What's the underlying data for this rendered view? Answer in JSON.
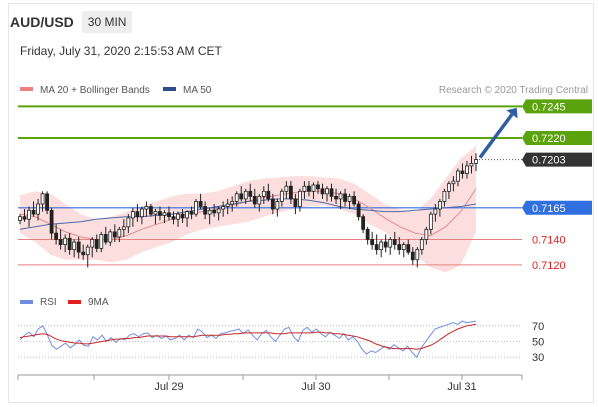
{
  "header": {
    "symbol": "AUD/USD",
    "timeframe": "30 MIN",
    "date": "Friday, July 31, 2020 2:15:53 AM CET"
  },
  "legend": {
    "bollinger": {
      "label": "MA 20 + Bollinger Bands",
      "color": "#f08080"
    },
    "ma50": {
      "label": "MA 50",
      "color": "#2c4f8c"
    },
    "credit": "Research © 2020 Trading Central"
  },
  "rsi_legend": {
    "rsi": {
      "label": "RSI",
      "color": "#6f8ee0"
    },
    "ma9": {
      "label": "9MA",
      "color": "#e02020"
    }
  },
  "colors": {
    "green": "#5aa30c",
    "blue": "#2f6fe0",
    "red": "#e88080",
    "dark": "#333333",
    "arrow": "#2f5ea0"
  },
  "chart_data": [
    {
      "type": "candlestick",
      "title": "AUD/USD 30 MIN",
      "ylim": [
        0.7112,
        0.725
      ],
      "x_ticks": [
        "Jul 29",
        "Jul 30",
        "Jul 31"
      ],
      "ohlc": [
        [
          0.7155,
          0.716,
          0.7152,
          0.7158
        ],
        [
          0.7158,
          0.7164,
          0.7154,
          0.7156
        ],
        [
          0.7156,
          0.7166,
          0.715,
          0.7163
        ],
        [
          0.7163,
          0.717,
          0.7158,
          0.716
        ],
        [
          0.716,
          0.7172,
          0.7155,
          0.7168
        ],
        [
          0.7168,
          0.7178,
          0.7162,
          0.7176
        ],
        [
          0.7176,
          0.7178,
          0.716,
          0.7163
        ],
        [
          0.7163,
          0.7165,
          0.714,
          0.7145
        ],
        [
          0.7145,
          0.7152,
          0.7136,
          0.714
        ],
        [
          0.714,
          0.7148,
          0.7132,
          0.7136
        ],
        [
          0.7136,
          0.7144,
          0.713,
          0.7141
        ],
        [
          0.7141,
          0.7145,
          0.7128,
          0.7132
        ],
        [
          0.7132,
          0.714,
          0.7126,
          0.7138
        ],
        [
          0.7138,
          0.7142,
          0.7125,
          0.713
        ],
        [
          0.713,
          0.7136,
          0.7124,
          0.7128
        ],
        [
          0.7128,
          0.7136,
          0.7118,
          0.7134
        ],
        [
          0.7134,
          0.7142,
          0.7126,
          0.714
        ],
        [
          0.714,
          0.7144,
          0.713,
          0.7133
        ],
        [
          0.7133,
          0.7146,
          0.713,
          0.7144
        ],
        [
          0.7144,
          0.715,
          0.7136,
          0.7138
        ],
        [
          0.7138,
          0.7148,
          0.7135,
          0.7146
        ],
        [
          0.7146,
          0.7152,
          0.7138,
          0.7142
        ],
        [
          0.7142,
          0.715,
          0.7138,
          0.7148
        ],
        [
          0.7148,
          0.7156,
          0.7142,
          0.715
        ],
        [
          0.715,
          0.716,
          0.7145,
          0.7157
        ],
        [
          0.7157,
          0.7165,
          0.715,
          0.7162
        ],
        [
          0.7162,
          0.7168,
          0.7154,
          0.7158
        ],
        [
          0.7158,
          0.7166,
          0.7152,
          0.7164
        ],
        [
          0.7164,
          0.717,
          0.7158,
          0.7166
        ],
        [
          0.7166,
          0.7168,
          0.7158,
          0.716
        ],
        [
          0.716,
          0.7164,
          0.7152,
          0.7162
        ],
        [
          0.7162,
          0.7166,
          0.7155,
          0.7159
        ],
        [
          0.7159,
          0.7163,
          0.7153,
          0.7161
        ],
        [
          0.7161,
          0.7166,
          0.7155,
          0.7158
        ],
        [
          0.7158,
          0.7162,
          0.7152,
          0.7156
        ],
        [
          0.7156,
          0.7162,
          0.715,
          0.716
        ],
        [
          0.716,
          0.7164,
          0.7153,
          0.7157
        ],
        [
          0.7157,
          0.7163,
          0.715,
          0.7162
        ],
        [
          0.7162,
          0.7166,
          0.7156,
          0.716
        ],
        [
          0.716,
          0.7172,
          0.7158,
          0.717
        ],
        [
          0.717,
          0.7176,
          0.7164,
          0.7166
        ],
        [
          0.7166,
          0.717,
          0.7156,
          0.716
        ],
        [
          0.716,
          0.7165,
          0.7152,
          0.7163
        ],
        [
          0.7163,
          0.7168,
          0.7158,
          0.7161
        ],
        [
          0.7161,
          0.7166,
          0.7155,
          0.7164
        ],
        [
          0.7164,
          0.717,
          0.7158,
          0.7166
        ],
        [
          0.7166,
          0.7172,
          0.716,
          0.7168
        ],
        [
          0.7168,
          0.7174,
          0.7162,
          0.717
        ],
        [
          0.717,
          0.7178,
          0.7166,
          0.7176
        ],
        [
          0.7176,
          0.7182,
          0.717,
          0.7172
        ],
        [
          0.7172,
          0.718,
          0.7168,
          0.7178
        ],
        [
          0.7178,
          0.7184,
          0.717,
          0.7174
        ],
        [
          0.7174,
          0.718,
          0.7165,
          0.7168
        ],
        [
          0.7168,
          0.7176,
          0.7162,
          0.7174
        ],
        [
          0.7174,
          0.7182,
          0.7168,
          0.7178
        ],
        [
          0.7178,
          0.7184,
          0.717,
          0.7172
        ],
        [
          0.7172,
          0.7176,
          0.716,
          0.7164
        ],
        [
          0.7164,
          0.7172,
          0.7158,
          0.717
        ],
        [
          0.717,
          0.718,
          0.7166,
          0.7178
        ],
        [
          0.7178,
          0.7186,
          0.7172,
          0.7182
        ],
        [
          0.7182,
          0.7186,
          0.7168,
          0.7172
        ],
        [
          0.7172,
          0.7176,
          0.716,
          0.7166
        ],
        [
          0.7166,
          0.718,
          0.7162,
          0.7178
        ],
        [
          0.7178,
          0.7186,
          0.7172,
          0.7182
        ],
        [
          0.7182,
          0.7186,
          0.7174,
          0.7178
        ],
        [
          0.7178,
          0.7185,
          0.7172,
          0.7183
        ],
        [
          0.7183,
          0.7186,
          0.7176,
          0.718
        ],
        [
          0.718,
          0.7184,
          0.7172,
          0.7176
        ],
        [
          0.7176,
          0.7182,
          0.717,
          0.718
        ],
        [
          0.718,
          0.7184,
          0.717,
          0.7174
        ],
        [
          0.7174,
          0.718,
          0.7168,
          0.7172
        ],
        [
          0.7172,
          0.7178,
          0.7164,
          0.7176
        ],
        [
          0.7176,
          0.718,
          0.7166,
          0.717
        ],
        [
          0.717,
          0.7176,
          0.7164,
          0.7174
        ],
        [
          0.7174,
          0.7178,
          0.7166,
          0.7168
        ],
        [
          0.7168,
          0.717,
          0.7155,
          0.7158
        ],
        [
          0.7158,
          0.716,
          0.7145,
          0.7148
        ],
        [
          0.7148,
          0.715,
          0.7136,
          0.714
        ],
        [
          0.714,
          0.7146,
          0.7132,
          0.7136
        ],
        [
          0.7136,
          0.7144,
          0.7128,
          0.7132
        ],
        [
          0.7132,
          0.714,
          0.7126,
          0.7138
        ],
        [
          0.7138,
          0.7144,
          0.713,
          0.7134
        ],
        [
          0.7134,
          0.7142,
          0.7128,
          0.714
        ],
        [
          0.714,
          0.7146,
          0.7132,
          0.7136
        ],
        [
          0.7136,
          0.7142,
          0.7128,
          0.7132
        ],
        [
          0.7132,
          0.7138,
          0.7126,
          0.7136
        ],
        [
          0.7136,
          0.714,
          0.7128,
          0.713
        ],
        [
          0.713,
          0.7134,
          0.712,
          0.7124
        ],
        [
          0.7124,
          0.7134,
          0.7118,
          0.7132
        ],
        [
          0.7132,
          0.7142,
          0.7128,
          0.714
        ],
        [
          0.714,
          0.715,
          0.7136,
          0.7148
        ],
        [
          0.7148,
          0.7162,
          0.7144,
          0.716
        ],
        [
          0.716,
          0.7168,
          0.7154,
          0.7164
        ],
        [
          0.7164,
          0.7172,
          0.7158,
          0.717
        ],
        [
          0.717,
          0.718,
          0.7166,
          0.7178
        ],
        [
          0.7178,
          0.7186,
          0.7172,
          0.7184
        ],
        [
          0.7184,
          0.719,
          0.7178,
          0.7186
        ],
        [
          0.7186,
          0.7196,
          0.7182,
          0.7194
        ],
        [
          0.7194,
          0.72,
          0.7188,
          0.7192
        ],
        [
          0.7192,
          0.7202,
          0.7188,
          0.7198
        ],
        [
          0.7198,
          0.7206,
          0.7192,
          0.72
        ],
        [
          0.72,
          0.7208,
          0.7194,
          0.7203
        ]
      ],
      "levels": [
        {
          "value": 0.7245,
          "label": "0.7245",
          "style": "green-fill"
        },
        {
          "value": 0.722,
          "label": "0.7220",
          "style": "green-fill"
        },
        {
          "value": 0.7203,
          "label": "0.7203",
          "style": "dark-fill"
        },
        {
          "value": 0.7165,
          "label": "0.7165",
          "style": "blue-fill"
        },
        {
          "value": 0.714,
          "label": "0.7140",
          "style": "red-text"
        },
        {
          "value": 0.712,
          "label": "0.7120",
          "style": "red-text"
        }
      ],
      "ma50": [
        0.7148,
        0.715,
        0.7152,
        0.7153,
        0.7154,
        0.7156,
        0.7157,
        0.7158,
        0.7158,
        0.7159,
        0.716,
        0.7162,
        0.7164,
        0.7166,
        0.7168,
        0.717,
        0.7171,
        0.7172,
        0.7172,
        0.7171,
        0.7169,
        0.7166,
        0.7164,
        0.7163,
        0.7162,
        0.7162,
        0.7163,
        0.7164,
        0.7165,
        0.7166,
        0.7168
      ],
      "ma20": [
        0.716,
        0.7158,
        0.7152,
        0.7146,
        0.7142,
        0.714,
        0.714,
        0.7143,
        0.7148,
        0.7152,
        0.7156,
        0.716,
        0.7162,
        0.7164,
        0.7167,
        0.717,
        0.7173,
        0.7175,
        0.7177,
        0.7178,
        0.7178,
        0.7176,
        0.7172,
        0.7165,
        0.7157,
        0.715,
        0.7145,
        0.7143,
        0.715,
        0.7162,
        0.718
      ],
      "bb_upper": [
        0.7175,
        0.7178,
        0.7176,
        0.7168,
        0.716,
        0.7156,
        0.7158,
        0.7162,
        0.7166,
        0.717,
        0.7174,
        0.7176,
        0.7176,
        0.7178,
        0.7182,
        0.7186,
        0.7188,
        0.7189,
        0.719,
        0.719,
        0.7189,
        0.7188,
        0.7184,
        0.7176,
        0.7168,
        0.7164,
        0.7162,
        0.7172,
        0.7188,
        0.7204,
        0.7214
      ],
      "bb_lower": [
        0.7145,
        0.7138,
        0.7128,
        0.7124,
        0.7124,
        0.7124,
        0.7122,
        0.7124,
        0.713,
        0.7134,
        0.7138,
        0.7144,
        0.7148,
        0.715,
        0.7152,
        0.7154,
        0.7158,
        0.7161,
        0.7164,
        0.7166,
        0.7167,
        0.7164,
        0.716,
        0.7152,
        0.7146,
        0.7136,
        0.7128,
        0.7118,
        0.7114,
        0.712,
        0.7146
      ]
    },
    {
      "type": "line",
      "title": "RSI",
      "ylim": [
        20,
        80
      ],
      "y_ticks": [
        70,
        50,
        30
      ],
      "series": [
        {
          "name": "RSI",
          "values": [
            52,
            58,
            62,
            56,
            66,
            70,
            58,
            45,
            40,
            44,
            48,
            42,
            46,
            52,
            45,
            44,
            56,
            52,
            58,
            50,
            55,
            49,
            54,
            52,
            58,
            60,
            56,
            60,
            61,
            55,
            58,
            54,
            57,
            52,
            54,
            58,
            52,
            58,
            55,
            66,
            62,
            55,
            58,
            54,
            60,
            61,
            63,
            64,
            66,
            60,
            65,
            58,
            52,
            60,
            64,
            56,
            50,
            58,
            66,
            68,
            56,
            50,
            64,
            68,
            62,
            66,
            60,
            56,
            62,
            58,
            54,
            60,
            52,
            56,
            50,
            40,
            34,
            38,
            36,
            40,
            44,
            40,
            46,
            42,
            38,
            44,
            36,
            30,
            42,
            50,
            58,
            66,
            68,
            70,
            72,
            74,
            72,
            76,
            74,
            75,
            76
          ]
        },
        {
          "name": "9MA",
          "values": [
            55,
            56,
            57,
            58,
            59,
            60,
            59,
            56,
            53,
            51,
            50,
            49,
            48,
            48,
            47,
            47,
            48,
            49,
            50,
            51,
            52,
            53,
            53,
            54,
            54,
            55,
            55,
            56,
            57,
            57,
            57,
            57,
            57,
            56,
            56,
            56,
            56,
            56,
            56,
            57,
            58,
            58,
            58,
            58,
            58,
            59,
            59,
            60,
            60,
            61,
            61,
            61,
            61,
            61,
            61,
            61,
            60,
            60,
            60,
            61,
            61,
            61,
            61,
            61,
            61,
            62,
            62,
            61,
            61,
            60,
            60,
            59,
            58,
            57,
            56,
            54,
            52,
            50,
            47,
            45,
            43,
            42,
            41,
            41,
            41,
            41,
            41,
            40,
            41,
            43,
            45,
            48,
            52,
            56,
            60,
            63,
            66,
            68,
            70,
            71,
            72
          ]
        }
      ]
    }
  ]
}
